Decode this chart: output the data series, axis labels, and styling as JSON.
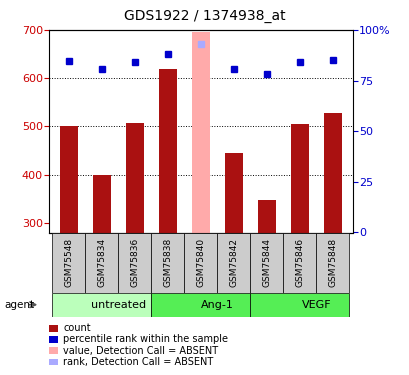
{
  "title": "GDS1922 / 1374938_at",
  "samples": [
    "GSM75548",
    "GSM75834",
    "GSM75836",
    "GSM75838",
    "GSM75840",
    "GSM75842",
    "GSM75844",
    "GSM75846",
    "GSM75848"
  ],
  "bar_values": [
    500,
    400,
    508,
    620,
    695,
    445,
    348,
    505,
    528
  ],
  "rank_values": [
    635,
    620,
    633,
    650,
    670,
    620,
    608,
    633,
    637
  ],
  "absent_mask": [
    false,
    false,
    false,
    false,
    true,
    false,
    false,
    false,
    false
  ],
  "bar_color_normal": "#aa1111",
  "bar_color_absent": "#ffaaaa",
  "rank_color_normal": "#0000cc",
  "rank_color_absent": "#aaaaff",
  "ymin": 280,
  "ymax": 700,
  "yticks": [
    300,
    400,
    500,
    600,
    700
  ],
  "groups": [
    {
      "label": "untreated",
      "start": 0,
      "end": 3,
      "color": "#bbffbb"
    },
    {
      "label": "Ang-1",
      "start": 3,
      "end": 6,
      "color": "#55ee55"
    },
    {
      "label": "VEGF",
      "start": 6,
      "end": 9,
      "color": "#55ee55"
    }
  ],
  "grid_color": "#000000",
  "tick_color_left": "#cc0000",
  "tick_color_right": "#0000cc",
  "bar_width": 0.55,
  "legend_items": [
    {
      "color": "#aa1111",
      "label": "count"
    },
    {
      "color": "#0000cc",
      "label": "percentile rank within the sample"
    },
    {
      "color": "#ffaaaa",
      "label": "value, Detection Call = ABSENT"
    },
    {
      "color": "#aaaaff",
      "label": "rank, Detection Call = ABSENT"
    }
  ]
}
